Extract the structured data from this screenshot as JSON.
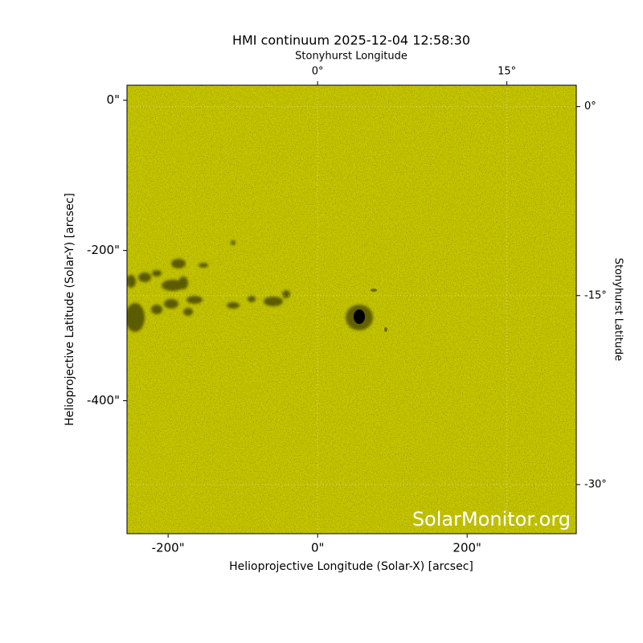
{
  "chart_data": {
    "type": "image",
    "title": "HMI continuum 2025-12-04 12:58:30",
    "xlabel": "Helioprojective Longitude (Solar-X) [arcsec]",
    "ylabel": "Helioprojective Latitude (Solar-Y) [arcsec]",
    "x2label": "Stonyhurst Longitude",
    "y2label": "Stonyhurst Latitude",
    "watermark": "SolarMonitor.org",
    "color": "#c8c800",
    "xlim": [
      -255,
      346
    ],
    "ylim": [
      -577,
      20
    ],
    "xticks": [
      {
        "value": -200,
        "label": "-200\""
      },
      {
        "value": 0,
        "label": "0\""
      },
      {
        "value": 200,
        "label": "200\""
      }
    ],
    "yticks": [
      {
        "value": 0,
        "label": "0\""
      },
      {
        "value": -200,
        "label": "-200\""
      },
      {
        "value": -400,
        "label": "-400\""
      }
    ],
    "x2lim": [
      -15.1,
      20.5
    ],
    "x2ticks": [
      {
        "value": 0,
        "label": "0°"
      },
      {
        "value": 15,
        "label": "15°"
      }
    ],
    "y2lim": [
      -33.9,
      1.7
    ],
    "y2ticks": [
      {
        "value": 0,
        "label": "0°"
      },
      {
        "value": -15,
        "label": "-15°"
      },
      {
        "value": -30,
        "label": "-30°"
      }
    ],
    "grid": true
  }
}
